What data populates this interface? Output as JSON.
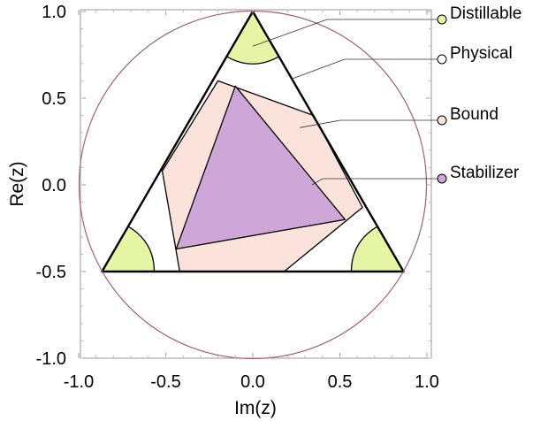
{
  "chart_data": {
    "type": "region-diagram",
    "xlabel": "Im(z)",
    "ylabel": "Re(z)",
    "xlim": [
      -1.0,
      1.0
    ],
    "ylim": [
      -1.0,
      1.0
    ],
    "x_ticks": [
      "-1.0",
      "-0.5",
      "0.0",
      "0.5",
      "1.0"
    ],
    "y_ticks": [
      "1.0",
      "0.5",
      "0.0",
      "-0.5",
      "-1.0"
    ],
    "x_tick_values": [
      -1.0,
      -0.5,
      0.0,
      0.5,
      1.0
    ],
    "y_tick_values": [
      1.0,
      0.5,
      0.0,
      -0.5,
      -1.0
    ],
    "unit_circle_radius": 1.0,
    "regions": [
      {
        "name": "Physical",
        "color": "#ffffff",
        "polygon": [
          [
            0,
            1.0
          ],
          [
            0.866,
            -0.5
          ],
          [
            -0.866,
            -0.5
          ]
        ]
      },
      {
        "name": "Bound",
        "color": "#fbe3dc",
        "polygon": [
          [
            -0.2,
            0.6
          ],
          [
            0.35,
            0.4
          ],
          [
            0.63,
            -0.13
          ],
          [
            0.18,
            -0.5
          ],
          [
            -0.42,
            -0.5
          ],
          [
            -0.52,
            0.08
          ]
        ]
      },
      {
        "name": "Stabilizer",
        "color": "#cea7d8",
        "polygon": [
          [
            -0.1,
            0.57
          ],
          [
            0.53,
            -0.2
          ],
          [
            -0.44,
            -0.37
          ]
        ]
      },
      {
        "name": "Distillable",
        "color": "#e6f5a3",
        "corners": [
          [
            0,
            1.0
          ],
          [
            0.866,
            -0.5
          ],
          [
            -0.866,
            -0.5
          ]
        ],
        "corner_radius": 0.3
      }
    ],
    "legend": [
      {
        "label": "Distillable",
        "color": "#e6f5a3",
        "anchor": [
          0.0,
          0.8
        ]
      },
      {
        "label": "Physical",
        "color": "#ffffff",
        "anchor": [
          0.22,
          0.61
        ]
      },
      {
        "label": "Bound",
        "color": "#fbe3dc",
        "anchor": [
          0.27,
          0.33
        ]
      },
      {
        "label": "Stabilizer",
        "color": "#cea7d8",
        "anchor": [
          0.34,
          0.0
        ]
      }
    ],
    "colors": {
      "circle": "#a35f76",
      "frame": "#999999",
      "outline": "#000000"
    }
  }
}
